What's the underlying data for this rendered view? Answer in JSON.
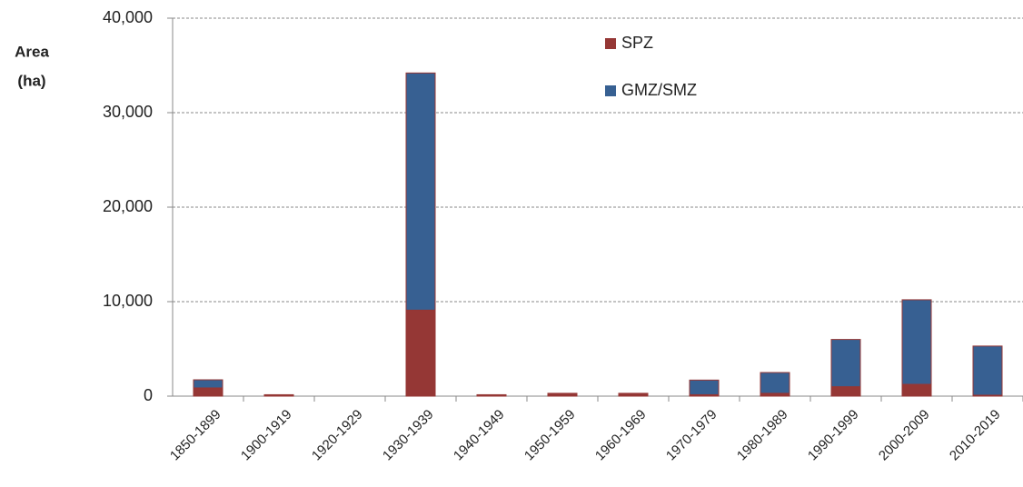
{
  "chart_data": {
    "type": "stacked_bar",
    "y_label_lines": [
      "Area",
      "(ha)"
    ],
    "categories": [
      "1850-1899",
      "1900-1919",
      "1920-1929",
      "1930-1939",
      "1940-1949",
      "1950-1959",
      "1960-1969",
      "1970-1979",
      "1980-1989",
      "1990-1999",
      "2000-2009",
      "2010-2019"
    ],
    "series": [
      {
        "name": "SPZ",
        "color": "#953735",
        "values": [
          870,
          150,
          0,
          9100,
          150,
          300,
          300,
          150,
          300,
          1000,
          1250,
          100
        ]
      },
      {
        "name": "GMZ/SMZ",
        "color": "#376092",
        "values": [
          860,
          0,
          0,
          25100,
          0,
          0,
          0,
          1550,
          2200,
          5000,
          8950,
          5200
        ]
      }
    ],
    "ylim": [
      0,
      40000
    ],
    "yticks": [
      0,
      {
        "value": 10000,
        "label": "10,000"
      },
      {
        "value": 20000,
        "label": "20,000"
      },
      {
        "value": 30000,
        "label": "30,000"
      },
      {
        "value": 40000,
        "label": "40,000"
      }
    ],
    "grid": true,
    "legend": "top"
  }
}
